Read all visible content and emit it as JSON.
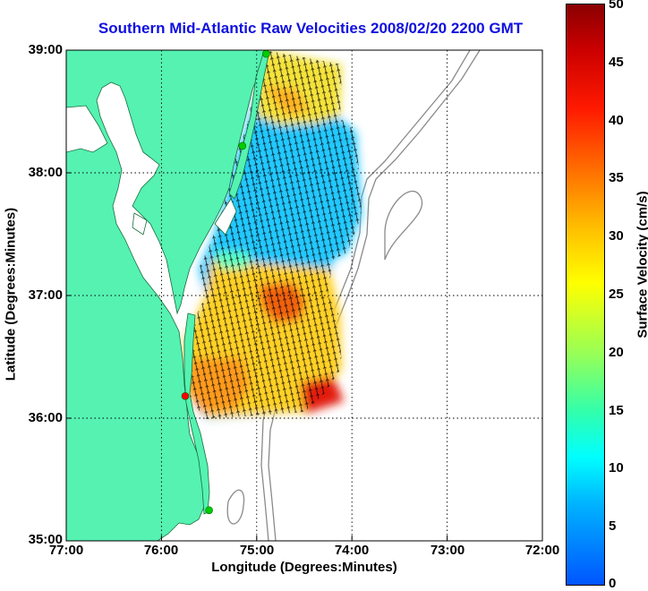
{
  "title": "Southern Mid-Atlantic Raw Velocities 2008/02/20 2200 GMT",
  "axes": {
    "xlabel": "Longitude (Degrees:Minutes)",
    "ylabel": "Latitude (Degrees:Minutes)",
    "xticks": [
      "77:00",
      "76:00",
      "75:00",
      "74:00",
      "73:00",
      "72:00"
    ],
    "yticks": [
      "39:00",
      "38:00",
      "37:00",
      "36:00",
      "35:00"
    ],
    "xlim_deg": [
      77,
      72
    ],
    "ylim_deg": [
      35,
      39
    ],
    "grid": "dotted"
  },
  "colorbar": {
    "label": "Surface Velocity (cm/s)",
    "ticks": [
      "50",
      "45",
      "40",
      "35",
      "30",
      "25",
      "20",
      "15",
      "10",
      "5",
      "0"
    ],
    "range": [
      0,
      50
    ],
    "colormap": "jet"
  },
  "colors": {
    "land": "#55f2b2",
    "title": "#1010e0",
    "bathymetry": "#8a8a8a",
    "station_active": "#00cc00",
    "station_alert": "#ff0000"
  },
  "stations": [
    {
      "lon": 74.9,
      "lat": 38.97,
      "status": "active"
    },
    {
      "lon": 75.15,
      "lat": 38.22,
      "status": "active"
    },
    {
      "lon": 75.75,
      "lat": 36.18,
      "status": "alert"
    },
    {
      "lon": 75.5,
      "lat": 35.25,
      "status": "active"
    }
  ],
  "velocity_field": [
    {
      "region": "northern-band",
      "lat_range": [
        38.45,
        39.0
      ],
      "lon_range": [
        74.1,
        75.1
      ],
      "speed_cms": 22
    },
    {
      "region": "upper-central-band",
      "lat_range": [
        37.35,
        38.45
      ],
      "lon_range": [
        73.95,
        75.5
      ],
      "speed_cms": 8
    },
    {
      "region": "lower-central-band",
      "lat_range": [
        36.6,
        37.35
      ],
      "lon_range": [
        74.2,
        75.3
      ],
      "speed_cms": 24
    },
    {
      "region": "core-maximum",
      "lat_range": [
        36.7,
        37.1
      ],
      "lon_range": [
        74.6,
        75.0
      ],
      "speed_cms": 36
    },
    {
      "region": "southern-band",
      "lat_range": [
        36.0,
        36.6
      ],
      "lon_range": [
        74.2,
        75.6
      ],
      "speed_cms": 28
    },
    {
      "region": "southeast-corner",
      "lat_range": [
        36.05,
        36.3
      ],
      "lon_range": [
        74.2,
        74.6
      ],
      "speed_cms": 42
    }
  ]
}
